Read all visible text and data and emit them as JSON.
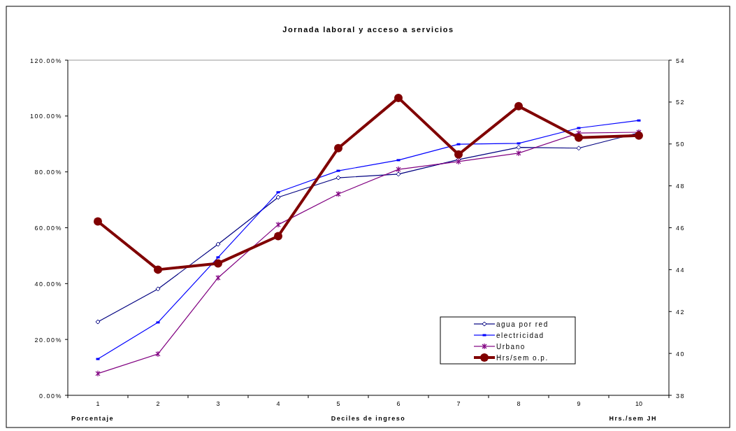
{
  "chart_data": {
    "type": "line",
    "title": "Jornada laboral y acceso a servicios",
    "xlabel": "Deciles de ingreso",
    "annotations": [
      "Porcentaje",
      "Hrs./sem JH"
    ],
    "categories": [
      "1",
      "2",
      "3",
      "4",
      "5",
      "6",
      "7",
      "8",
      "9",
      "10"
    ],
    "series": [
      {
        "name": "agua por red",
        "color": "#000080",
        "marker": "diamond",
        "values": [
          26.3,
          38.1,
          54.1,
          70.9,
          77.9,
          79.2,
          84.4,
          88.8,
          88.5,
          94.0
        ]
      },
      {
        "name": "electricidad",
        "color": "#0000ff",
        "marker": "square",
        "values": [
          13.0,
          26.1,
          49.4,
          72.7,
          80.4,
          84.2,
          89.9,
          90.2,
          95.7,
          98.4
        ]
      },
      {
        "name": "Urbano",
        "color": "#800080",
        "marker": "cross",
        "values": [
          7.8,
          14.8,
          42.1,
          61.1,
          72.1,
          80.9,
          83.7,
          86.7,
          93.9,
          94.2
        ]
      },
      {
        "name": "Hrs/sem o.p.",
        "color": "#800000",
        "marker": "circle",
        "axis": "y2",
        "values": [
          46.3,
          44.0,
          44.3,
          45.6,
          49.8,
          52.2,
          49.5,
          51.8,
          50.3,
          50.4
        ]
      }
    ],
    "ylim": [
      0,
      120
    ],
    "yticks": [
      {
        "value": 0,
        "label": "0.00%"
      },
      {
        "value": 20,
        "label": "20.00%"
      },
      {
        "value": 40,
        "label": "40.00%"
      },
      {
        "value": 60,
        "label": "60.00%"
      },
      {
        "value": 80,
        "label": "80.00%"
      },
      {
        "value": 100,
        "label": "100.00%"
      },
      {
        "value": 120,
        "label": "120.00%"
      }
    ],
    "y2lim": [
      38,
      54
    ],
    "y2ticks": [
      38,
      40,
      42,
      44,
      46,
      48,
      50,
      52,
      54
    ],
    "grid": false,
    "legend": "bottom right",
    "line_style": "solid"
  }
}
